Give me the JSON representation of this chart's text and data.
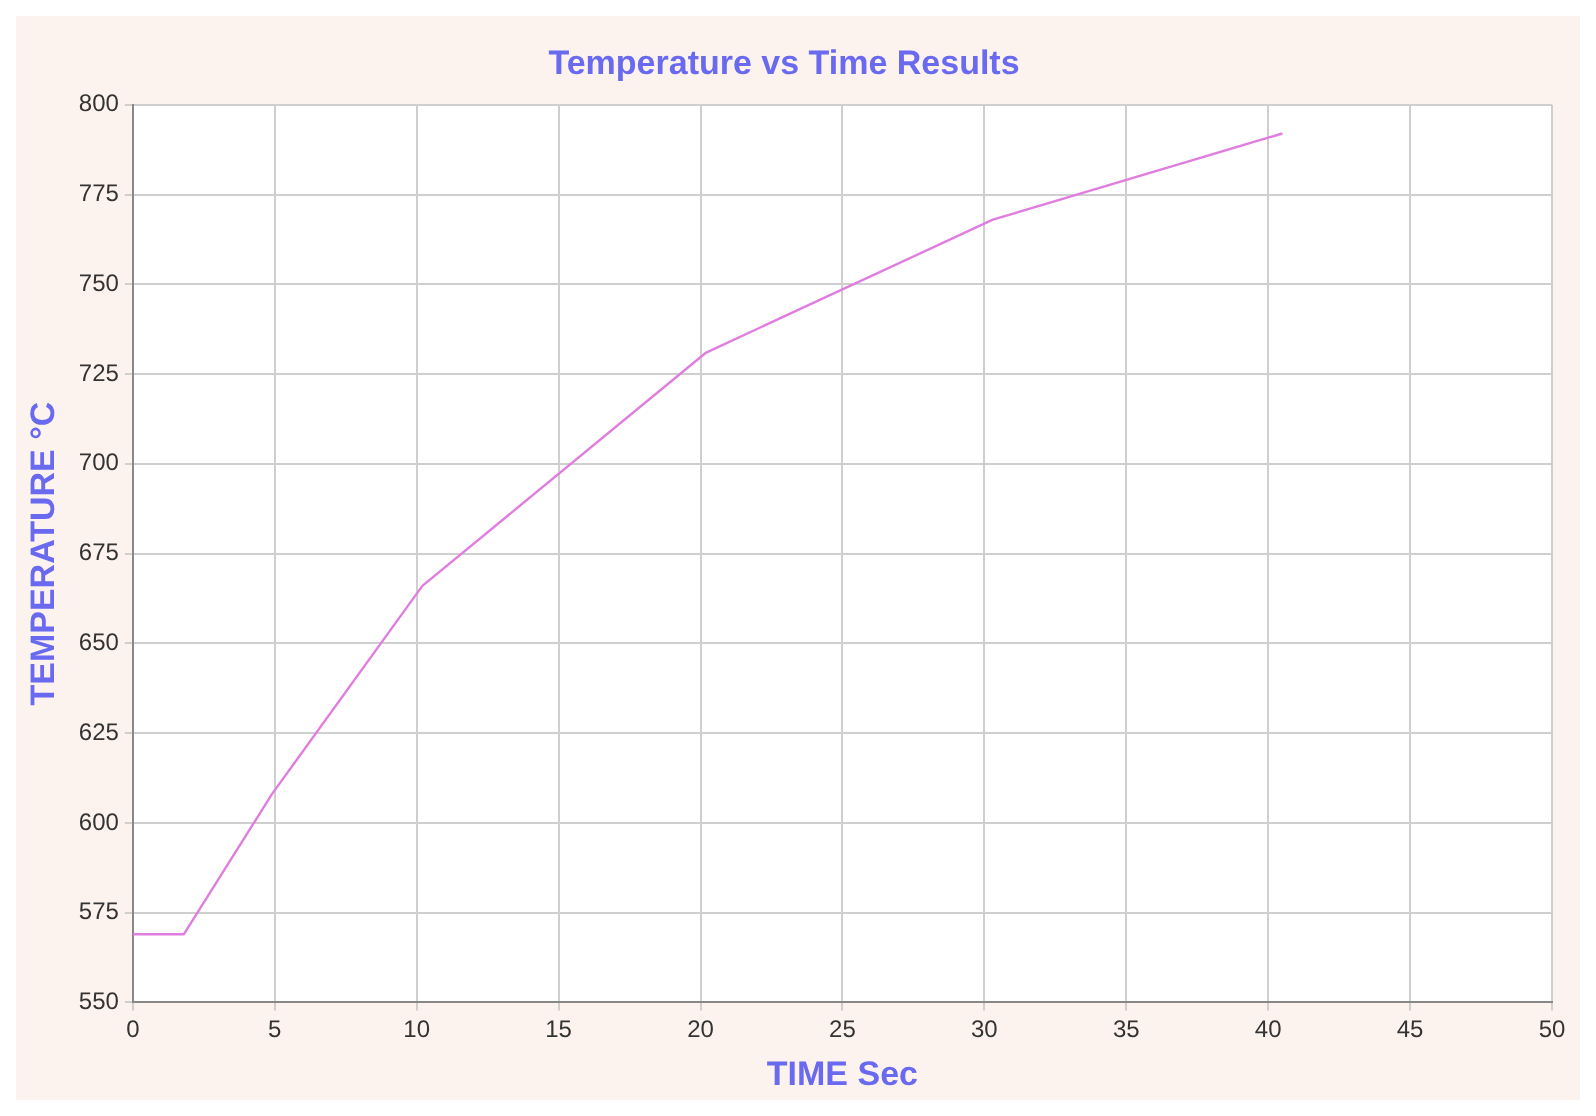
{
  "chart_data": {
    "type": "line",
    "title": "Temperature vs Time Results",
    "xlabel": "TIME Sec",
    "ylabel": "TEMPERATURE °C",
    "x": [
      0,
      1.8,
      4.9,
      10.2,
      20.2,
      30.3,
      40.5
    ],
    "series": [
      {
        "color": "#e07ee0",
        "values": [
          569,
          569,
          608,
          666,
          731,
          768,
          792
        ]
      }
    ],
    "xlim": [
      0,
      50
    ],
    "xticks": [
      0,
      5,
      10,
      15,
      20,
      25,
      30,
      35,
      40,
      45,
      50
    ],
    "ylim": [
      550,
      800
    ],
    "yticks": [
      550,
      575,
      600,
      625,
      650,
      675,
      700,
      725,
      750,
      775,
      800
    ],
    "grid": true,
    "legend": false,
    "marker": "none",
    "line_style": "solid"
  }
}
